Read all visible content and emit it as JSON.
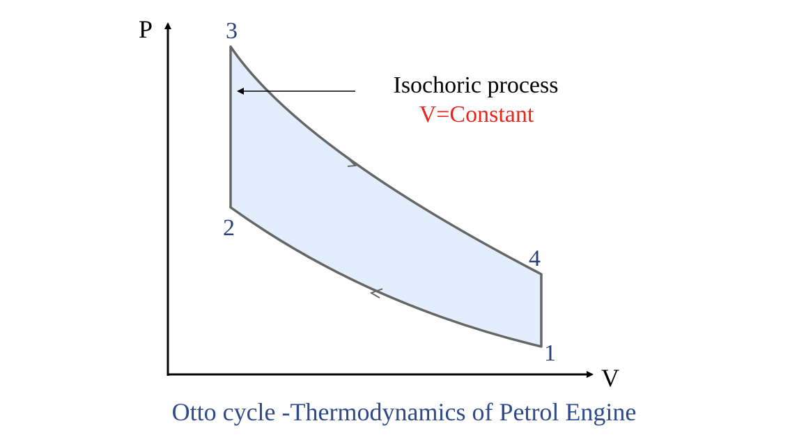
{
  "axes": {
    "y_label": "P",
    "x_label": "V"
  },
  "points": [
    {
      "label": "1"
    },
    {
      "label": "2"
    },
    {
      "label": "3"
    },
    {
      "label": "4"
    }
  ],
  "annotation": {
    "title": "Isochoric process",
    "subtitle": "V=Constant"
  },
  "caption": "Otto cycle -Thermodynamics of Petrol Engine"
}
